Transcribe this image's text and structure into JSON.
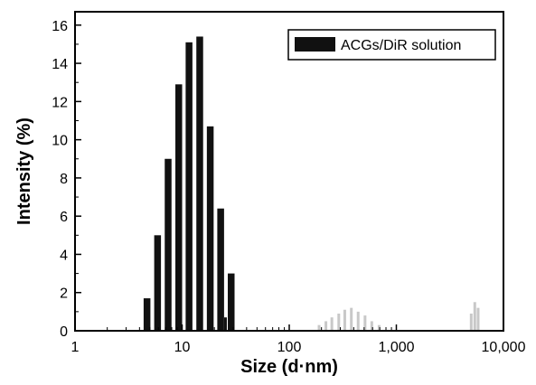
{
  "chart_data": {
    "type": "bar",
    "xscale": "log",
    "xlabel": "Size (d·nm)",
    "ylabel": "Intensity (%)",
    "xlim": [
      1,
      10000
    ],
    "ylim": [
      0,
      16.7
    ],
    "xticks": [
      1,
      10,
      100,
      1000,
      10000
    ],
    "xtick_labels": [
      "1",
      "10",
      "100",
      "1,000",
      "10,000"
    ],
    "yticks": [
      0,
      2,
      4,
      6,
      8,
      10,
      12,
      14,
      16
    ],
    "ytick_labels": [
      "0",
      "2",
      "4",
      "6",
      "8",
      "10",
      "12",
      "14",
      "16"
    ],
    "grid": false,
    "legend_position": "top-right",
    "series": [
      {
        "name": "ACGs/DiR solution",
        "color": "#111111",
        "x": [
          4.7,
          5.9,
          7.4,
          9.3,
          11.6,
          14.6,
          18.3,
          22.9,
          28.7
        ],
        "values": [
          1.7,
          5.0,
          9.0,
          12.9,
          15.1,
          15.4,
          10.7,
          6.4,
          3.0
        ]
      },
      {
        "name": "",
        "color": "#c8c8c8",
        "x": [
          190,
          220,
          250,
          290,
          330,
          380,
          440,
          510,
          590,
          690,
          5000,
          5400,
          5800
        ],
        "values": [
          0.3,
          0.5,
          0.7,
          0.9,
          1.1,
          1.2,
          1.0,
          0.8,
          0.5,
          0.3,
          0.9,
          1.5,
          1.2
        ]
      },
      {
        "name": "",
        "color": "#111111",
        "x": [
          25.4
        ],
        "values": [
          0.7
        ]
      }
    ]
  }
}
